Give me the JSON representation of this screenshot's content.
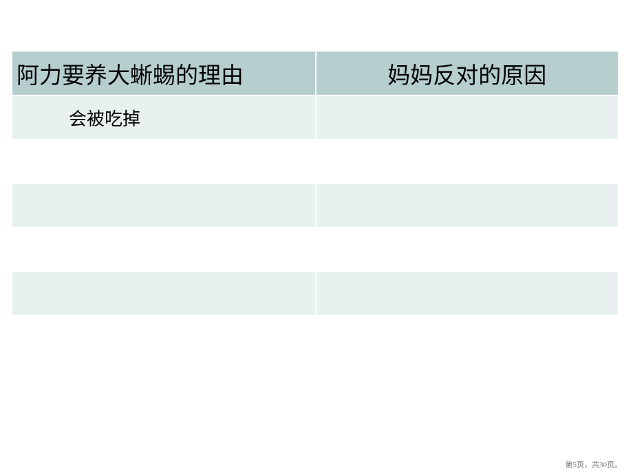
{
  "slide": {
    "background_color": "#ffffff"
  },
  "table": {
    "type": "table",
    "header_bg_color": "#b6cfce",
    "row_odd_bg_color": "#e9f0f0",
    "row_even_bg_color": "#ffffff",
    "border_color": "#ffffff",
    "header_fontsize": 33,
    "cell_fontsize": 26,
    "columns": [
      {
        "label": "阿力要养大蜥蜴的理由",
        "width_pct": 50,
        "align": "left"
      },
      {
        "label": "妈妈反对的原因",
        "width_pct": 50,
        "align": "center"
      }
    ],
    "rows": [
      {
        "c1": "会被吃掉",
        "c2": ""
      },
      {
        "c1": "",
        "c2": ""
      },
      {
        "c1": "",
        "c2": ""
      },
      {
        "c1": "",
        "c2": ""
      },
      {
        "c1": "",
        "c2": ""
      }
    ]
  },
  "footer": {
    "text": "第5页，共30页。",
    "current_page": 5,
    "total_pages": 30,
    "fontsize": 11,
    "color": "#777777"
  }
}
